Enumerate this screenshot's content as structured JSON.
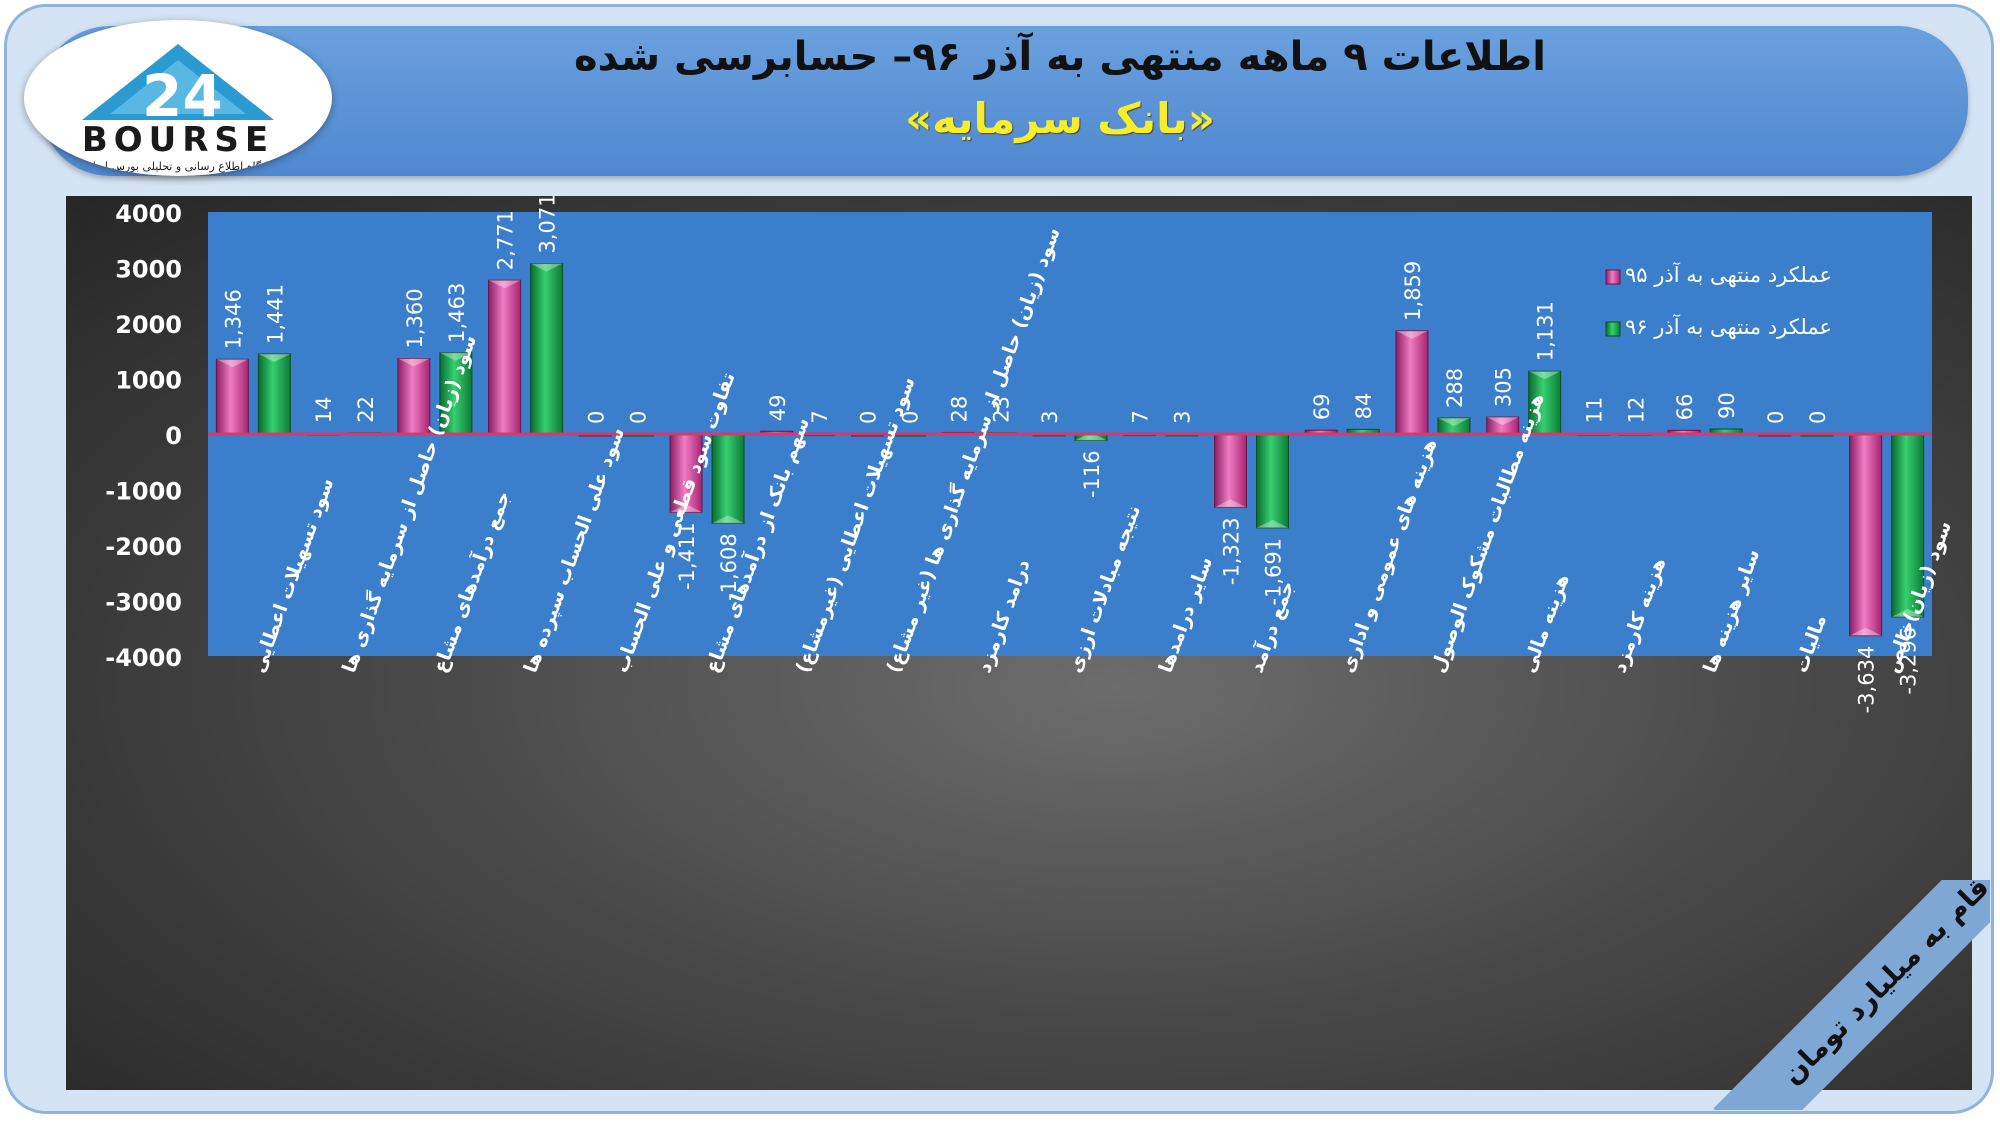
{
  "header": {
    "title": "اطلاعات ۹ ماهه منتهی به آذر ۹۶– حسابرسی شده",
    "subtitle": "«بانک سرمایه»"
  },
  "logo": {
    "word": "BOURSE",
    "tagline": "پایگاه اطلاع رسانی و تحلیلی بورس ایران"
  },
  "unit_note": "ارقام به میلیارد تومان",
  "colors": {
    "series1": "#c2338f",
    "series2": "#159447",
    "plot_bg": "#3b7fcc",
    "zero_line": "#d43a6a"
  },
  "chart_data": {
    "type": "bar",
    "categories": [
      "سود تسهیلات اعطایی",
      "سود (زیان) حاصل از سرمایه گذاری ها",
      "جمع درآمدهای مشاع",
      "سود علی الحساب سپرده ها",
      "تفاوت سود قطعی و علی الحساب",
      "سهم بانک از درآمدهای مشاع",
      "سود تسهیلات اعطایی (غیرمشاع)",
      "سود (زیان) حاصل از سرمایه گذاری ها (غیر مشاع)",
      "درامد کارمزد",
      "نتیجه مبادلات ارزی",
      "سایر درامدها",
      "جمع درآمد",
      "هزینه های عمومی و اداری",
      "هزینه مطالبات مشکوک الوصول",
      "هزینه مالی",
      "هزینه کارمزد",
      "سایر هزینه ها",
      "مالیات",
      "سود (زیان)خالص"
    ],
    "series": [
      {
        "name": "عملکرد منتهی به آذر ۹۵",
        "values": [
          1346,
          14,
          1360,
          2771,
          0,
          -1411,
          49,
          0,
          28,
          3,
          7,
          -1323,
          69,
          1859,
          305,
          11,
          66,
          0,
          -3634
        ]
      },
      {
        "name": "عملکرد منتهی به آذر ۹۶",
        "values": [
          1441,
          22,
          1463,
          3071,
          0,
          -1608,
          7,
          0,
          23,
          -116,
          3,
          -1691,
          84,
          288,
          1131,
          12,
          90,
          0,
          -3296
        ]
      }
    ],
    "value_labels": [
      [
        "1,346",
        "14",
        "1,360",
        "2,771",
        "0",
        "-1,411",
        "49",
        "0",
        "28",
        "3",
        "7",
        "-1,323",
        "69",
        "1,859",
        "305",
        "11",
        "66",
        "0",
        "-3,634"
      ],
      [
        "1,441",
        "22",
        "1,463",
        "3,071",
        "0",
        "-1,608",
        "7",
        "0",
        "23",
        "-116",
        "3",
        "-1,691",
        "84",
        "288",
        "1,131",
        "12",
        "90",
        "0",
        "-3,296"
      ]
    ],
    "ylim": [
      -4000,
      4000
    ],
    "yticks": [
      "-4000",
      "-3000",
      "-2000",
      "-1000",
      "0",
      "1000",
      "2000",
      "3000",
      "4000"
    ],
    "legend_position": "top-right",
    "grid": false
  }
}
